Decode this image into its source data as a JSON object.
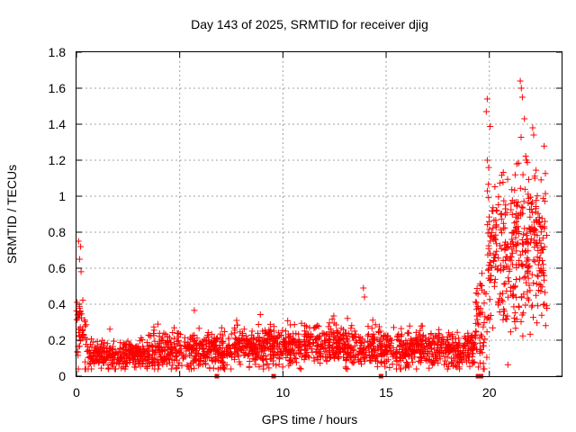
{
  "chart_data": {
    "type": "scatter",
    "title": "Day 143 of 2025, SRMTID for receiver djig",
    "xlabel": "GPS time / hours",
    "ylabel": "SRMTID / TECUs",
    "xlim": [
      0,
      23.5
    ],
    "ylim": [
      0,
      1.8
    ],
    "x_ticks": [
      0,
      5,
      10,
      15,
      20
    ],
    "x_tick_labels": [
      "0",
      "5",
      "10",
      "15",
      "20"
    ],
    "y_ticks": [
      0,
      0.2,
      0.4,
      0.6,
      0.8,
      1.0,
      1.2,
      1.4,
      1.6,
      1.8
    ],
    "y_tick_labels": [
      "0",
      "0.2",
      "0.4",
      "0.6",
      "0.8",
      "1",
      "1.2",
      "1.4",
      "1.6",
      "1.8"
    ],
    "grid": true,
    "marker": "+",
    "marker_color": "#ff0000",
    "baseline_markers_x": [
      6.8,
      9.55,
      14.75,
      19.45,
      19.6
    ],
    "series": [
      {
        "name": "SRMTID",
        "segments": [
          {
            "x_start": 0.0,
            "x_end": 0.5,
            "typical": 0.25,
            "spread": 0.2
          },
          {
            "x_start": 0.5,
            "x_end": 3.5,
            "typical": 0.12,
            "spread": 0.06
          },
          {
            "x_start": 3.5,
            "x_end": 7.5,
            "typical": 0.14,
            "spread": 0.08
          },
          {
            "x_start": 7.5,
            "x_end": 13.0,
            "typical": 0.17,
            "spread": 0.08
          },
          {
            "x_start": 13.0,
            "x_end": 19.3,
            "typical": 0.15,
            "spread": 0.08
          },
          {
            "x_start": 19.3,
            "x_end": 19.9,
            "typical": 0.3,
            "spread": 0.2
          },
          {
            "x_start": 19.9,
            "x_end": 22.8,
            "typical": 0.7,
            "spread": 0.35
          }
        ],
        "highlights": [
          {
            "x": 0.1,
            "y": 0.75
          },
          {
            "x": 0.2,
            "y": 0.72
          },
          {
            "x": 0.15,
            "y": 0.65
          },
          {
            "x": 13.9,
            "y": 0.49
          },
          {
            "x": 13.95,
            "y": 0.44
          },
          {
            "x": 19.9,
            "y": 1.54
          },
          {
            "x": 19.85,
            "y": 1.47
          },
          {
            "x": 19.9,
            "y": 1.2
          },
          {
            "x": 21.5,
            "y": 1.64
          },
          {
            "x": 21.55,
            "y": 1.6
          },
          {
            "x": 21.6,
            "y": 1.55
          },
          {
            "x": 21.7,
            "y": 1.43
          },
          {
            "x": 22.1,
            "y": 1.38
          },
          {
            "x": 22.15,
            "y": 1.34
          },
          {
            "x": 21.8,
            "y": 1.2
          },
          {
            "x": 22.2,
            "y": 1.1
          }
        ]
      }
    ]
  }
}
